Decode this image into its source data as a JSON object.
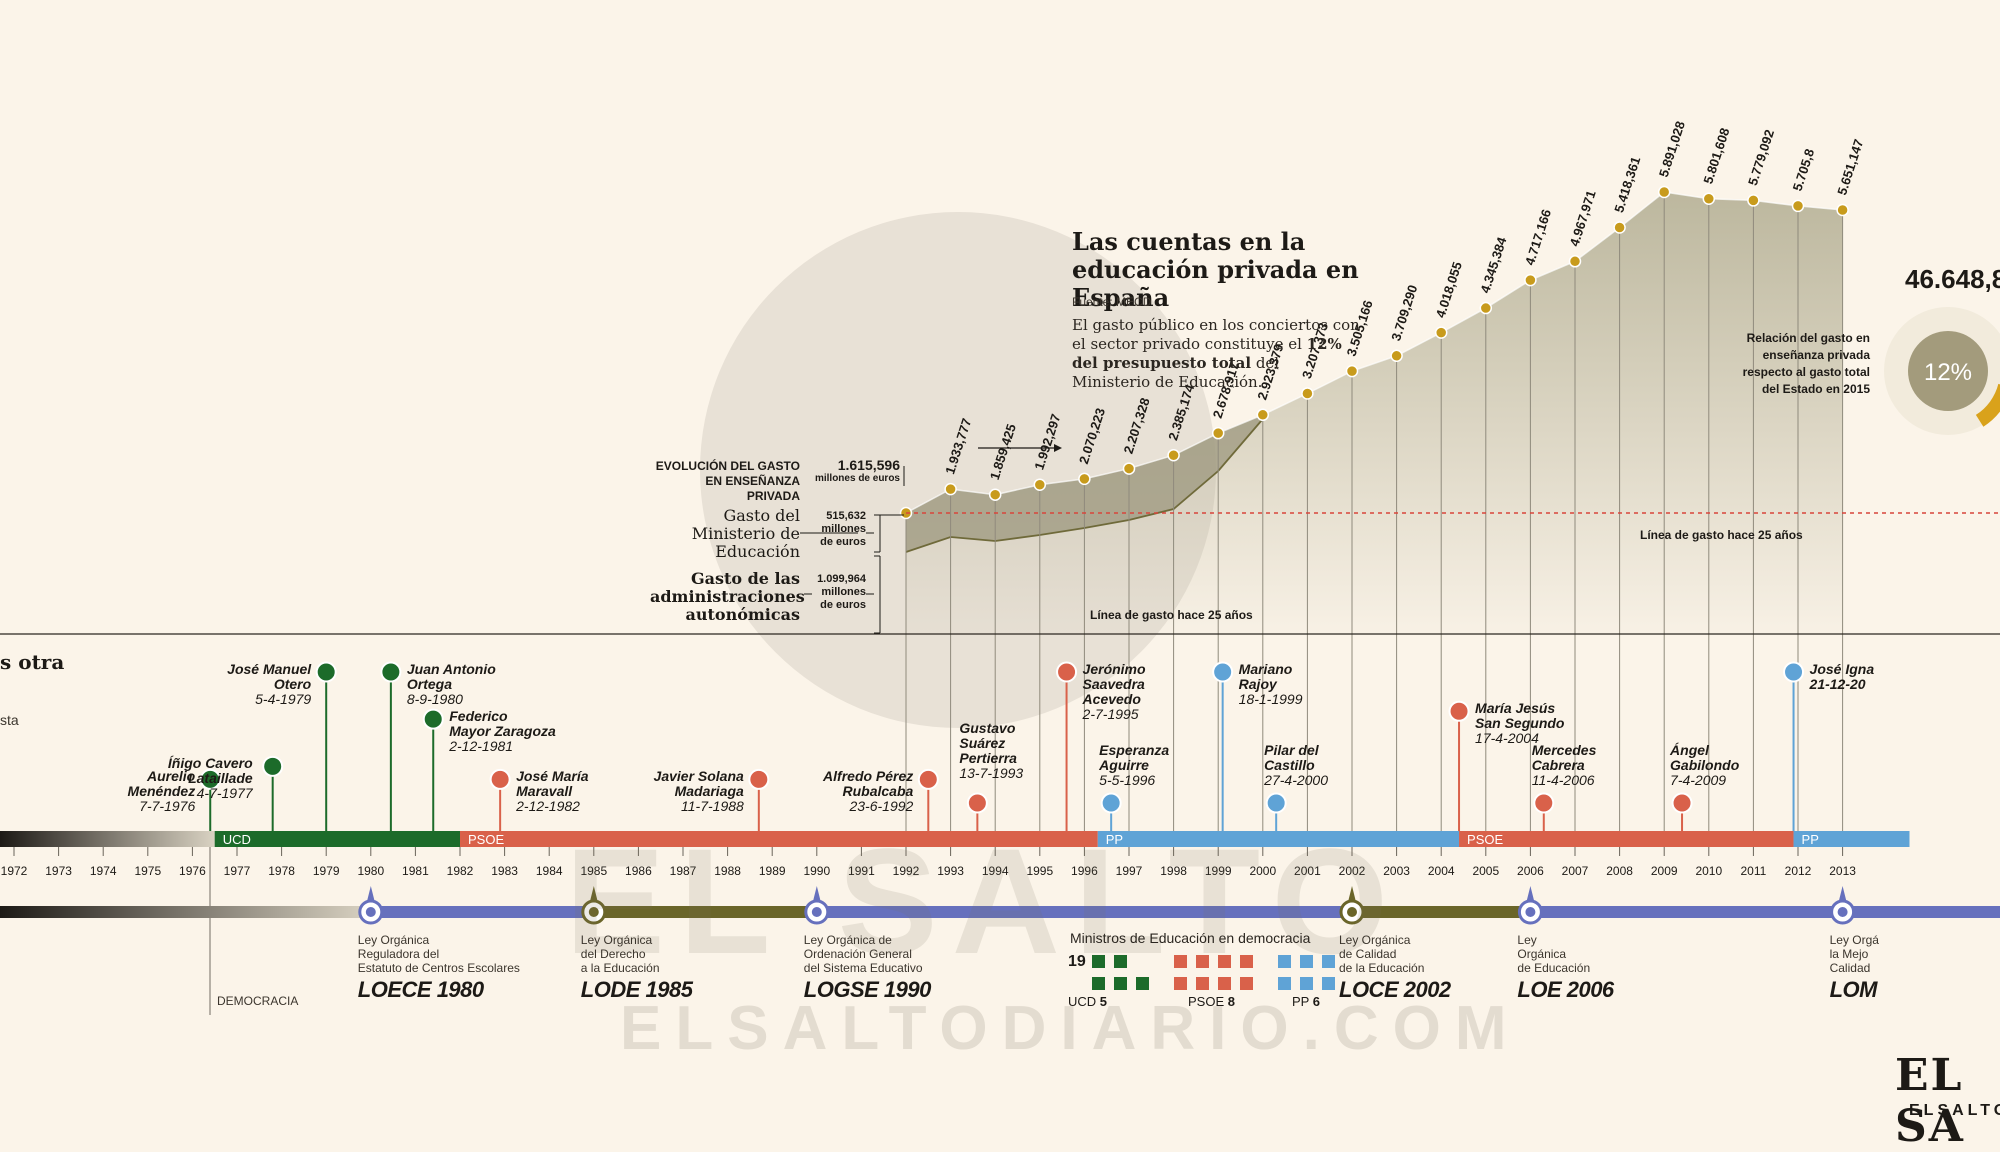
{
  "chart_data": {
    "type": "area",
    "title": "Las cuentas en la educación privada en España",
    "source": "Fuente: MECD",
    "description_parts": [
      "El gasto público en los conciertos con el sector privado constituye el ",
      "12% del presupuesto total",
      " del Ministerio de Educación."
    ],
    "legend": {
      "heading": "EVOLUCIÓN DEL GASTO EN ENSEÑANZA PRIVADA",
      "total_value": "1.615,596",
      "total_unit": "millones de euros",
      "ministry_label": "Gasto del Ministerio de Educación",
      "ministry_value": "515,632",
      "ministry_unit": "millones de euros",
      "regions_label": "Gasto de las administraciones autonómicas",
      "regions_value": "1.099,964",
      "regions_unit": "millones de euros"
    },
    "series": [
      {
        "x": [
          1992,
          1993,
          1994,
          1995,
          1996,
          1997,
          1998,
          1999,
          2000,
          2001,
          2002,
          2003,
          2004,
          2005,
          2006,
          2007,
          2008,
          2009,
          2010,
          2011,
          2012,
          2013
        ],
        "labels": [
          "",
          "1.933,777",
          "1.859,425",
          "1.992,297",
          "2.070,223",
          "2.207,328",
          "2.385,174",
          "2.678,917",
          "2.923,379",
          "3.207,373",
          "3.505,166",
          "3.709,290",
          "4.018,055",
          "4.345,384",
          "4.717,166",
          "4.967,971",
          "5.418,361",
          "5.891,028",
          "5.801,608",
          "5.779,092",
          "5.705,8",
          "5.651,147"
        ],
        "values": [
          1615.596,
          1933.777,
          1859.425,
          1992.297,
          2070.223,
          2207.328,
          2385.174,
          2678.917,
          2923.379,
          3207.373,
          3505.166,
          3709.29,
          4018.055,
          4345.384,
          4717.166,
          4967.971,
          5418.361,
          5891.028,
          5801.608,
          5779.092,
          5705.8,
          5651.147
        ]
      }
    ],
    "reference_line_label": "Línea de gasto hace 25 años",
    "reference_value": 1615.596,
    "side_note": "Relación del gasto en enseñanza privada respecto al gasto total del Estado en 2015",
    "pie_value": "12%",
    "total_value": "46.648,8"
  },
  "timeline": {
    "years": [
      "1972",
      "1973",
      "1974",
      "1975",
      "1976",
      "1977",
      "1978",
      "1979",
      "1980",
      "1981",
      "1982",
      "1983",
      "1984",
      "1985",
      "1986",
      "1987",
      "1988",
      "1989",
      "1990",
      "1991",
      "1992",
      "1993",
      "1994",
      "1995",
      "1996",
      "1997",
      "1998",
      "1999",
      "2000",
      "2001",
      "2002",
      "2003",
      "2004",
      "2005",
      "2006",
      "2007",
      "2008",
      "2009",
      "2010",
      "2011",
      "2012",
      "2013"
    ],
    "periods": [
      {
        "label": "UCD",
        "from": 1976.5,
        "to": 1982,
        "color": "#1c6b2a"
      },
      {
        "label": "PSOE",
        "from": 1982,
        "to": 1996.3,
        "color": "#d9614a"
      },
      {
        "label": "PP",
        "from": 1996.3,
        "to": 2004.4,
        "color": "#5fa3d6"
      },
      {
        "label": "PSOE",
        "from": 2004.4,
        "to": 2011.9,
        "color": "#d9614a"
      },
      {
        "label": "PP",
        "from": 2011.9,
        "to": 2014.5,
        "color": "#5fa3d6"
      }
    ],
    "democracy_label": "DEMOCRACIA",
    "left_title": "s otra",
    "left_sub": "sta"
  },
  "ministers": [
    {
      "name_lines": [
        "Aurelio",
        "Menéndez"
      ],
      "date": "7-7-1976",
      "party": "UCD",
      "year": 1976.4,
      "stem": 0.82
    },
    {
      "name_lines": [
        "Íñigo Cavero",
        "Lataillade"
      ],
      "date": "4-7-1977",
      "party": "UCD",
      "year": 1977.8,
      "stem": 0.72
    },
    {
      "name_lines": [
        "José Manuel",
        "Otero"
      ],
      "date": "5-4-1979",
      "party": "UCD",
      "year": 1979.0,
      "stem": 0.0
    },
    {
      "name_lines": [
        "Juan Antonio",
        "Ortega"
      ],
      "date": "8-9-1980",
      "party": "UCD",
      "year": 1980.45,
      "stem": 0.0
    },
    {
      "name_lines": [
        "Federico",
        "Mayor Zaragoza"
      ],
      "date": "2-12-1981",
      "party": "UCD",
      "year": 1981.4,
      "stem": 0.36
    },
    {
      "name_lines": [
        "José María",
        "Maravall"
      ],
      "date": "2-12-1982",
      "party": "PSOE",
      "year": 1982.9,
      "stem": 0.82
    },
    {
      "name_lines": [
        "Javier Solana",
        "Madariaga"
      ],
      "date": "11-7-1988",
      "party": "PSOE",
      "year": 1988.7,
      "stem": 0.82
    },
    {
      "name_lines": [
        "Alfredo Pérez",
        "Rubalcaba"
      ],
      "date": "23-6-1992",
      "party": "PSOE",
      "year": 1992.5,
      "stem": 0.82
    },
    {
      "name_lines": [
        "Gustavo",
        "Suárez",
        "Pertierra"
      ],
      "date": "13-7-1993",
      "party": "PSOE",
      "year": 1993.6,
      "stem": 1.0
    },
    {
      "name_lines": [
        "Jerónimo",
        "Saavedra",
        "Acevedo"
      ],
      "date": "2-7-1995",
      "party": "PSOE",
      "year": 1995.6,
      "stem": 0.0
    },
    {
      "name_lines": [
        "Esperanza",
        "Aguirre"
      ],
      "date": "5-5-1996",
      "party": "PP",
      "year": 1996.6,
      "stem": 1.0
    },
    {
      "name_lines": [
        "Mariano",
        "Rajoy"
      ],
      "date": "18-1-1999",
      "party": "PP",
      "year": 1999.1,
      "stem": 0.0
    },
    {
      "name_lines": [
        "Pilar del",
        "Castillo"
      ],
      "date": "27-4-2000",
      "party": "PP",
      "year": 2000.3,
      "stem": 1.0
    },
    {
      "name_lines": [
        "María Jesús",
        "San Segundo"
      ],
      "date": "17-4-2004",
      "party": "PSOE",
      "year": 2004.4,
      "stem": 0.3
    },
    {
      "name_lines": [
        "Mercedes",
        "Cabrera"
      ],
      "date": "11-4-2006",
      "party": "PSOE",
      "year": 2006.3,
      "stem": 1.0
    },
    {
      "name_lines": [
        "Ángel",
        "Gabilondo"
      ],
      "date": "7-4-2009",
      "party": "PSOE",
      "year": 2009.4,
      "stem": 1.0
    },
    {
      "name_lines": [
        "José Igna",
        "21-12-20"
      ],
      "date": "",
      "party": "PP",
      "year": 2011.9,
      "stem": 0.0
    }
  ],
  "laws": [
    {
      "lines": [
        "Ley Orgánica",
        "Reguladora del",
        "Estatuto de Centros Escolares"
      ],
      "acronym": "LOECE 1980",
      "year": 1980
    },
    {
      "lines": [
        "Ley Orgánica",
        "del Derecho",
        "a la Educación"
      ],
      "acronym": "LODE 1985",
      "year": 1985
    },
    {
      "lines": [
        "Ley Orgánica de",
        "Ordenación General",
        "del Sistema Educativo"
      ],
      "acronym": "LOGSE 1990",
      "year": 1990
    },
    {
      "lines": [
        "Ley Orgánica",
        "de Calidad",
        "de la Educación"
      ],
      "acronym": "LOCE 2002",
      "year": 2002
    },
    {
      "lines": [
        "Ley",
        "Orgánica",
        "de Educación"
      ],
      "acronym": "LOE 2006",
      "year": 2006
    },
    {
      "lines": [
        "Ley Orgá",
        "la Mejo",
        "Calidad"
      ],
      "acronym": "LOM",
      "year": 2013
    }
  ],
  "ministers_summary": {
    "heading": "Ministros de Educación en democracia",
    "total": "19",
    "groups": [
      {
        "party": "UCD",
        "count": "5",
        "color": "#1c6b2a"
      },
      {
        "party": "PSOE",
        "count": "8",
        "color": "#d9614a"
      },
      {
        "party": "PP",
        "count": "6",
        "color": "#5fa3d6"
      }
    ]
  },
  "colors": {
    "background": "#fbf4e9",
    "area_fill": "#b9b49a",
    "series_line": "#6f6a3a",
    "point": "#c89b1c",
    "reference": "#d8453b",
    "law_line_blue": "#6670bd",
    "law_line_olive": "#6a6529"
  },
  "brand": {
    "name": "EL SA",
    "sub": "ELSALTO"
  },
  "watermark": {
    "big": "EL SALTO",
    "small": "ELSALTODIARIO.COM"
  }
}
